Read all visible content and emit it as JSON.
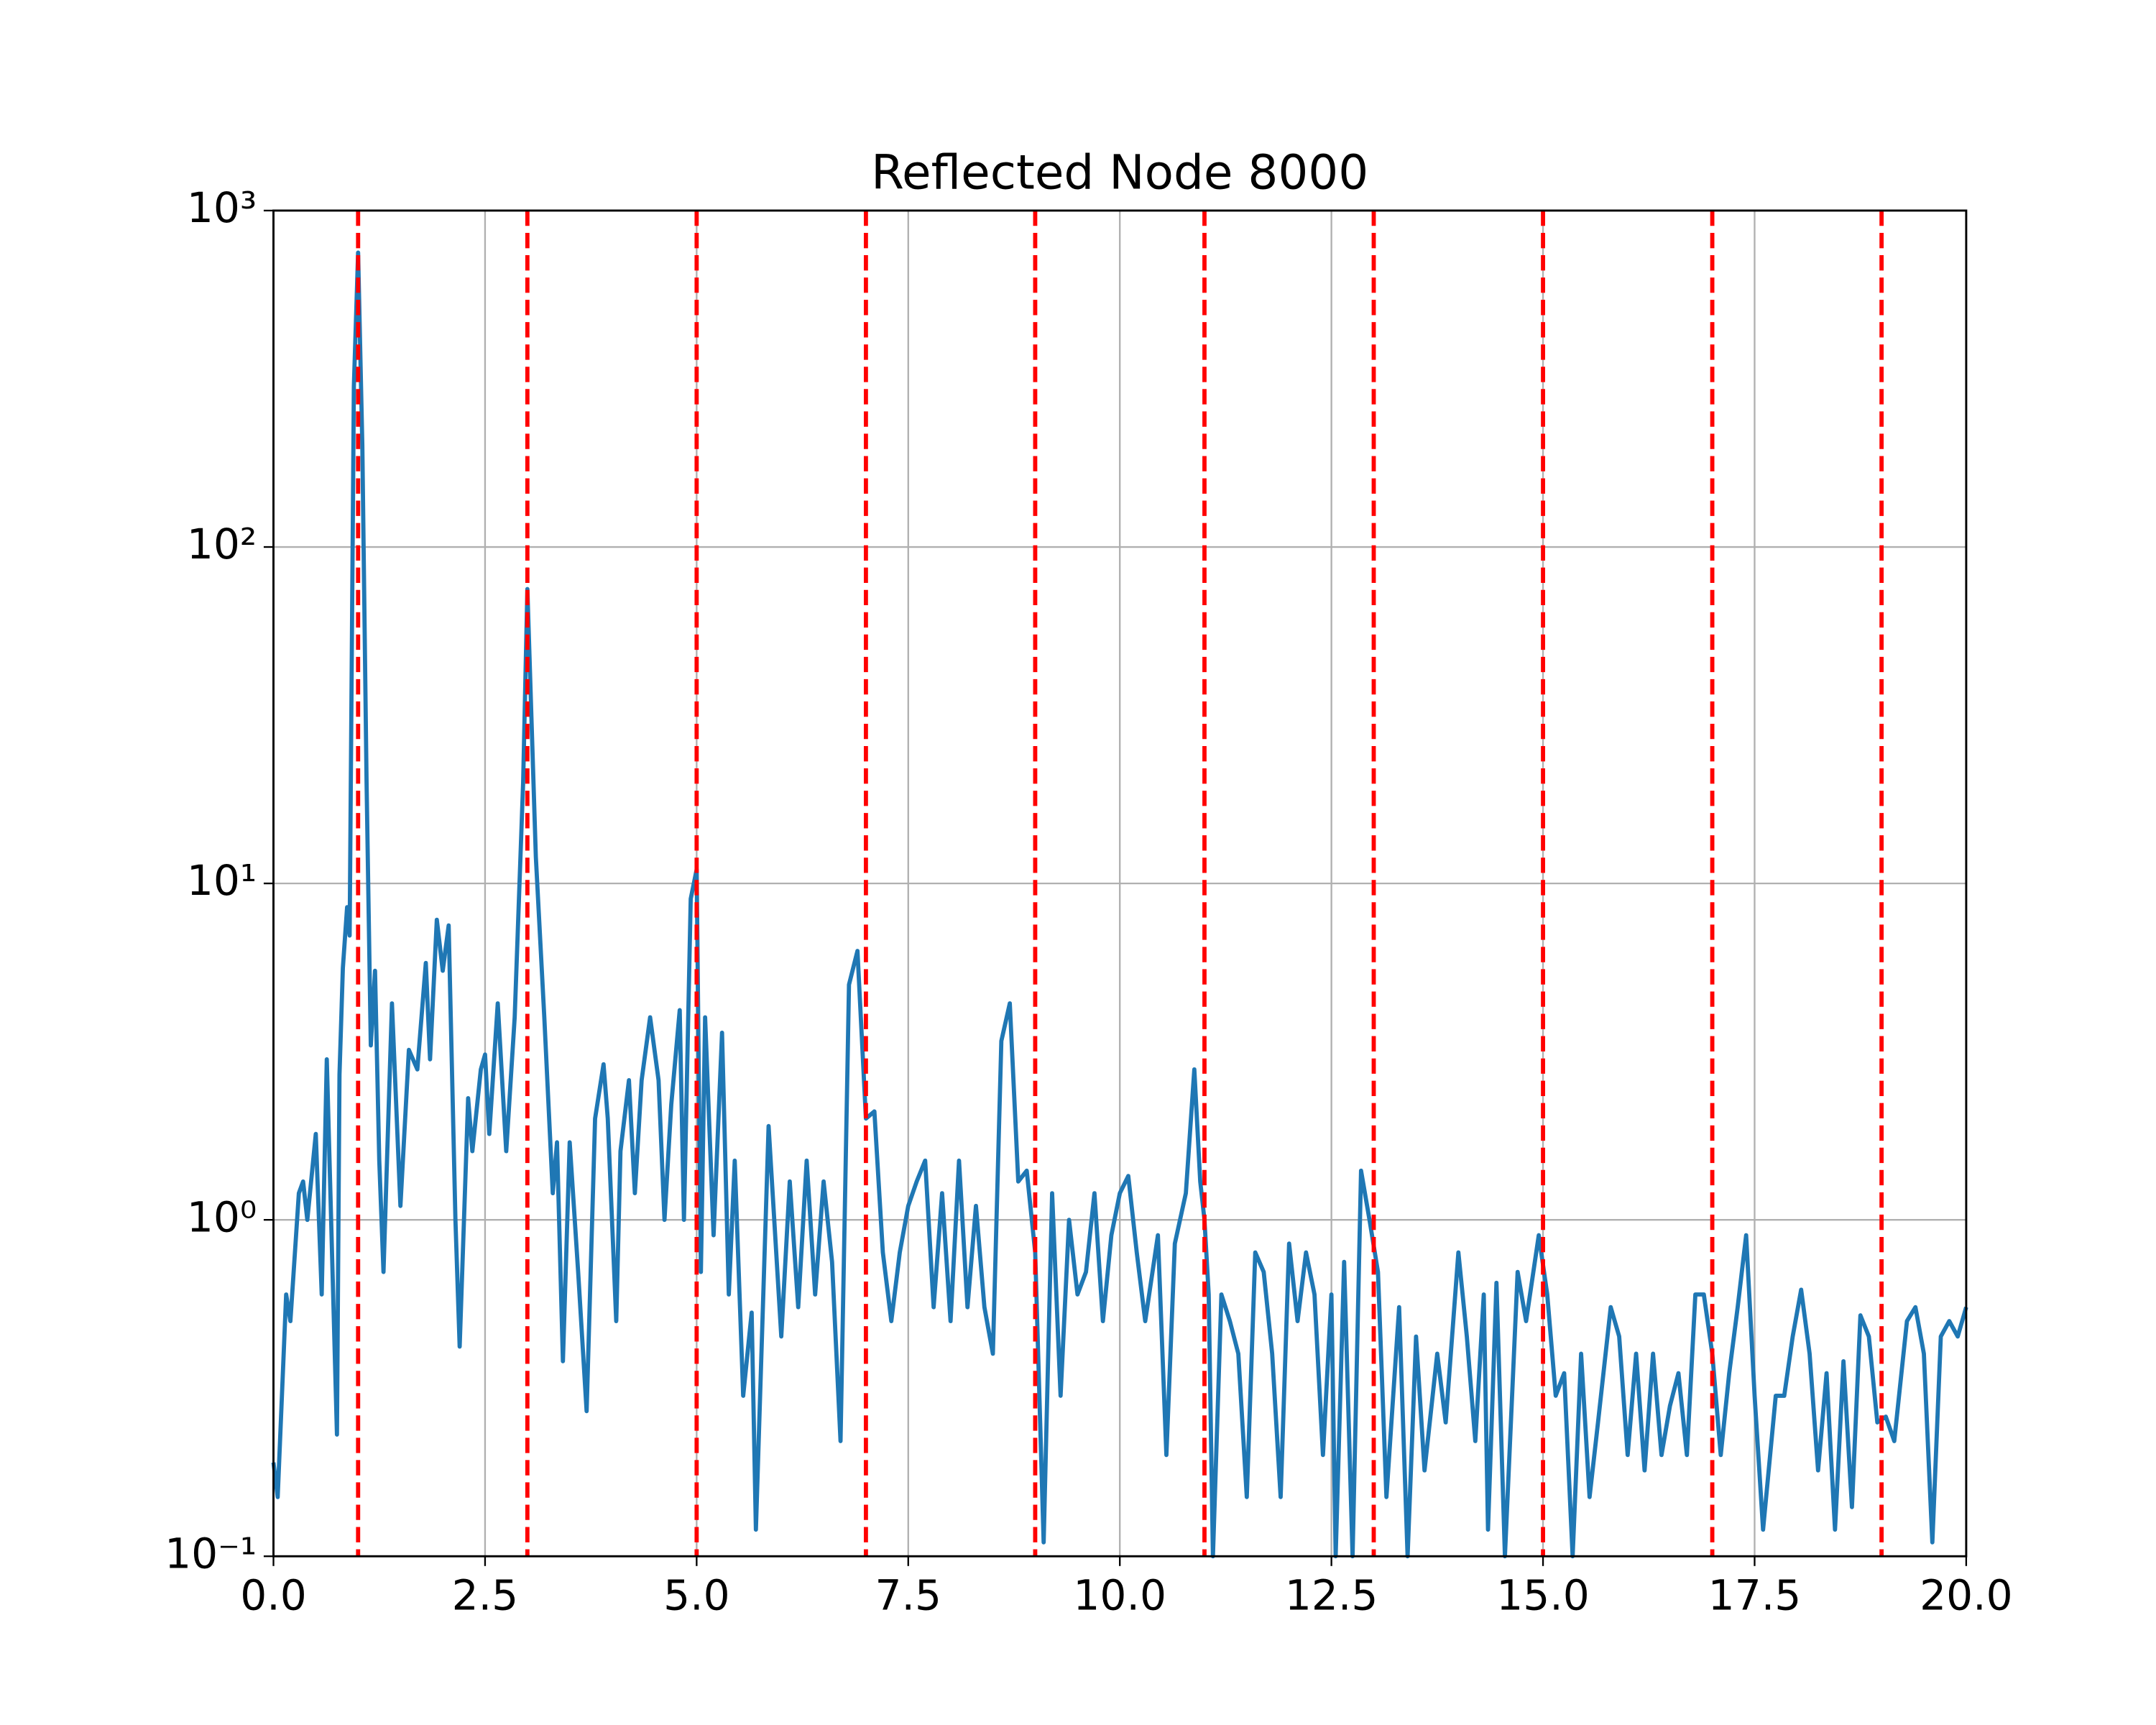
{
  "chart_data": {
    "type": "line",
    "title": "Reflected Node 8000",
    "x": [
      0.0,
      0.05,
      0.15,
      0.2,
      0.3,
      0.35,
      0.4,
      0.5,
      0.57,
      0.63,
      0.75,
      0.78,
      0.82,
      0.87,
      0.9,
      0.95,
      1.0,
      1.05,
      1.1,
      1.15,
      1.2,
      1.25,
      1.3,
      1.4,
      1.5,
      1.6,
      1.7,
      1.8,
      1.85,
      1.93,
      2.0,
      2.07,
      2.15,
      2.2,
      2.3,
      2.35,
      2.45,
      2.5,
      2.55,
      2.65,
      2.75,
      2.85,
      2.95,
      3.0,
      3.05,
      3.1,
      3.2,
      3.3,
      3.35,
      3.42,
      3.5,
      3.6,
      3.7,
      3.8,
      3.9,
      3.95,
      4.05,
      4.1,
      4.2,
      4.27,
      4.35,
      4.45,
      4.55,
      4.62,
      4.7,
      4.8,
      4.85,
      4.93,
      5.0,
      5.05,
      5.1,
      5.2,
      5.3,
      5.38,
      5.45,
      5.55,
      5.65,
      5.7,
      5.85,
      6.0,
      6.1,
      6.2,
      6.3,
      6.4,
      6.5,
      6.6,
      6.7,
      6.8,
      6.9,
      7.0,
      7.1,
      7.2,
      7.3,
      7.4,
      7.5,
      7.6,
      7.7,
      7.8,
      7.9,
      8.0,
      8.1,
      8.2,
      8.3,
      8.4,
      8.5,
      8.6,
      8.7,
      8.8,
      8.9,
      9.0,
      9.1,
      9.2,
      9.3,
      9.4,
      9.5,
      9.6,
      9.7,
      9.8,
      9.9,
      10.0,
      10.1,
      10.2,
      10.3,
      10.45,
      10.55,
      10.65,
      10.78,
      10.88,
      10.95,
      11.0,
      11.05,
      11.1,
      11.2,
      11.3,
      11.4,
      11.5,
      11.6,
      11.7,
      11.8,
      11.9,
      12.0,
      12.1,
      12.2,
      12.3,
      12.4,
      12.5,
      12.55,
      12.65,
      12.75,
      12.85,
      12.95,
      13.05,
      13.15,
      13.3,
      13.4,
      13.5,
      13.6,
      13.75,
      13.85,
      14.0,
      14.1,
      14.2,
      14.3,
      14.35,
      14.45,
      14.55,
      14.7,
      14.8,
      14.95,
      15.05,
      15.15,
      15.25,
      15.35,
      15.45,
      15.55,
      15.65,
      15.8,
      15.9,
      16.0,
      16.1,
      16.2,
      16.3,
      16.4,
      16.5,
      16.6,
      16.7,
      16.8,
      16.9,
      17.0,
      17.1,
      17.2,
      17.3,
      17.4,
      17.5,
      17.6,
      17.75,
      17.85,
      17.95,
      18.05,
      18.15,
      18.25,
      18.35,
      18.45,
      18.55,
      18.65,
      18.75,
      18.85,
      18.95,
      19.05,
      19.15,
      19.3,
      19.4,
      19.5,
      19.6,
      19.7,
      19.8,
      19.9,
      20.0
    ],
    "series": [
      {
        "color": "#1f77b4",
        "values": [
          0.19,
          0.15,
          0.6,
          0.5,
          1.2,
          1.3,
          1.0,
          1.8,
          0.6,
          3.0,
          0.23,
          2.7,
          5.6,
          8.5,
          7,
          300,
          750,
          200,
          20,
          3.3,
          5.5,
          1.5,
          0.7,
          4.4,
          1.1,
          3.2,
          2.8,
          5.8,
          3,
          7.8,
          5.5,
          7.5,
          1.0,
          0.42,
          2.3,
          1.6,
          2.8,
          3.1,
          1.8,
          4.4,
          1.6,
          4,
          20,
          75,
          30,
          12,
          4,
          1.2,
          1.7,
          0.38,
          1.7,
          0.7,
          0.27,
          2,
          2.9,
          2,
          0.5,
          1.6,
          2.6,
          1.2,
          2.6,
          4,
          2.6,
          1.0,
          2.2,
          4.2,
          1.0,
          9,
          11,
          0.7,
          4,
          0.9,
          3.6,
          0.6,
          1.5,
          0.3,
          0.53,
          0.12,
          1.9,
          0.45,
          1.3,
          0.55,
          1.5,
          0.6,
          1.3,
          0.75,
          0.22,
          5,
          6.3,
          2.0,
          2.1,
          0.8,
          0.5,
          0.8,
          1.1,
          1.3,
          1.5,
          0.55,
          1.2,
          0.5,
          1.5,
          0.55,
          1.1,
          0.55,
          0.4,
          3.4,
          4.4,
          1.3,
          1.4,
          0.8,
          0.11,
          1.2,
          0.3,
          1.0,
          0.6,
          0.7,
          1.2,
          0.5,
          0.9,
          1.2,
          1.35,
          0.8,
          0.5,
          0.9,
          0.2,
          0.85,
          1.2,
          2.8,
          1.3,
          1.0,
          0.6,
          0.1,
          0.6,
          0.5,
          0.4,
          0.15,
          0.8,
          0.7,
          0.4,
          0.15,
          0.85,
          0.5,
          0.8,
          0.6,
          0.2,
          0.6,
          0.1,
          0.75,
          0.1,
          1.4,
          1.0,
          0.7,
          0.15,
          0.55,
          0.1,
          0.45,
          0.18,
          0.4,
          0.25,
          0.8,
          0.45,
          0.22,
          0.6,
          0.12,
          0.65,
          0.1,
          0.7,
          0.5,
          0.9,
          0.6,
          0.3,
          0.35,
          0.1,
          0.4,
          0.15,
          0.25,
          0.55,
          0.45,
          0.2,
          0.4,
          0.18,
          0.4,
          0.2,
          0.28,
          0.35,
          0.2,
          0.6,
          0.6,
          0.4,
          0.2,
          0.35,
          0.55,
          0.9,
          0.3,
          0.12,
          0.3,
          0.3,
          0.45,
          0.62,
          0.4,
          0.18,
          0.35,
          0.12,
          0.38,
          0.14,
          0.52,
          0.45,
          0.25,
          0.26,
          0.22,
          0.5,
          0.55,
          0.4,
          0.11,
          0.45,
          0.5,
          0.45,
          0.55
        ]
      }
    ],
    "vlines": [
      1,
      3,
      5,
      7,
      9,
      11,
      13,
      15,
      17,
      19
    ],
    "vline_color": "#ff0000",
    "xlim": [
      0,
      20
    ],
    "xticks": [
      {
        "value": 0,
        "label": "0.0"
      },
      2.5,
      {
        "value": 5,
        "label": "5.0"
      },
      7.5,
      {
        "value": 10,
        "label": "10.0"
      },
      12.5,
      {
        "value": 15,
        "label": "15.0"
      },
      17.5,
      {
        "value": 20,
        "label": "20.0"
      }
    ],
    "ylim": [
      0.1,
      1000
    ],
    "log_y": true,
    "yticks": [
      {
        "value": 0.1,
        "label": "10⁻¹"
      },
      {
        "value": 1,
        "label": "10⁰"
      },
      {
        "value": 10,
        "label": "10¹"
      },
      {
        "value": 100,
        "label": "10²"
      },
      {
        "value": 1000,
        "label": "10³"
      }
    ],
    "grid": true
  }
}
